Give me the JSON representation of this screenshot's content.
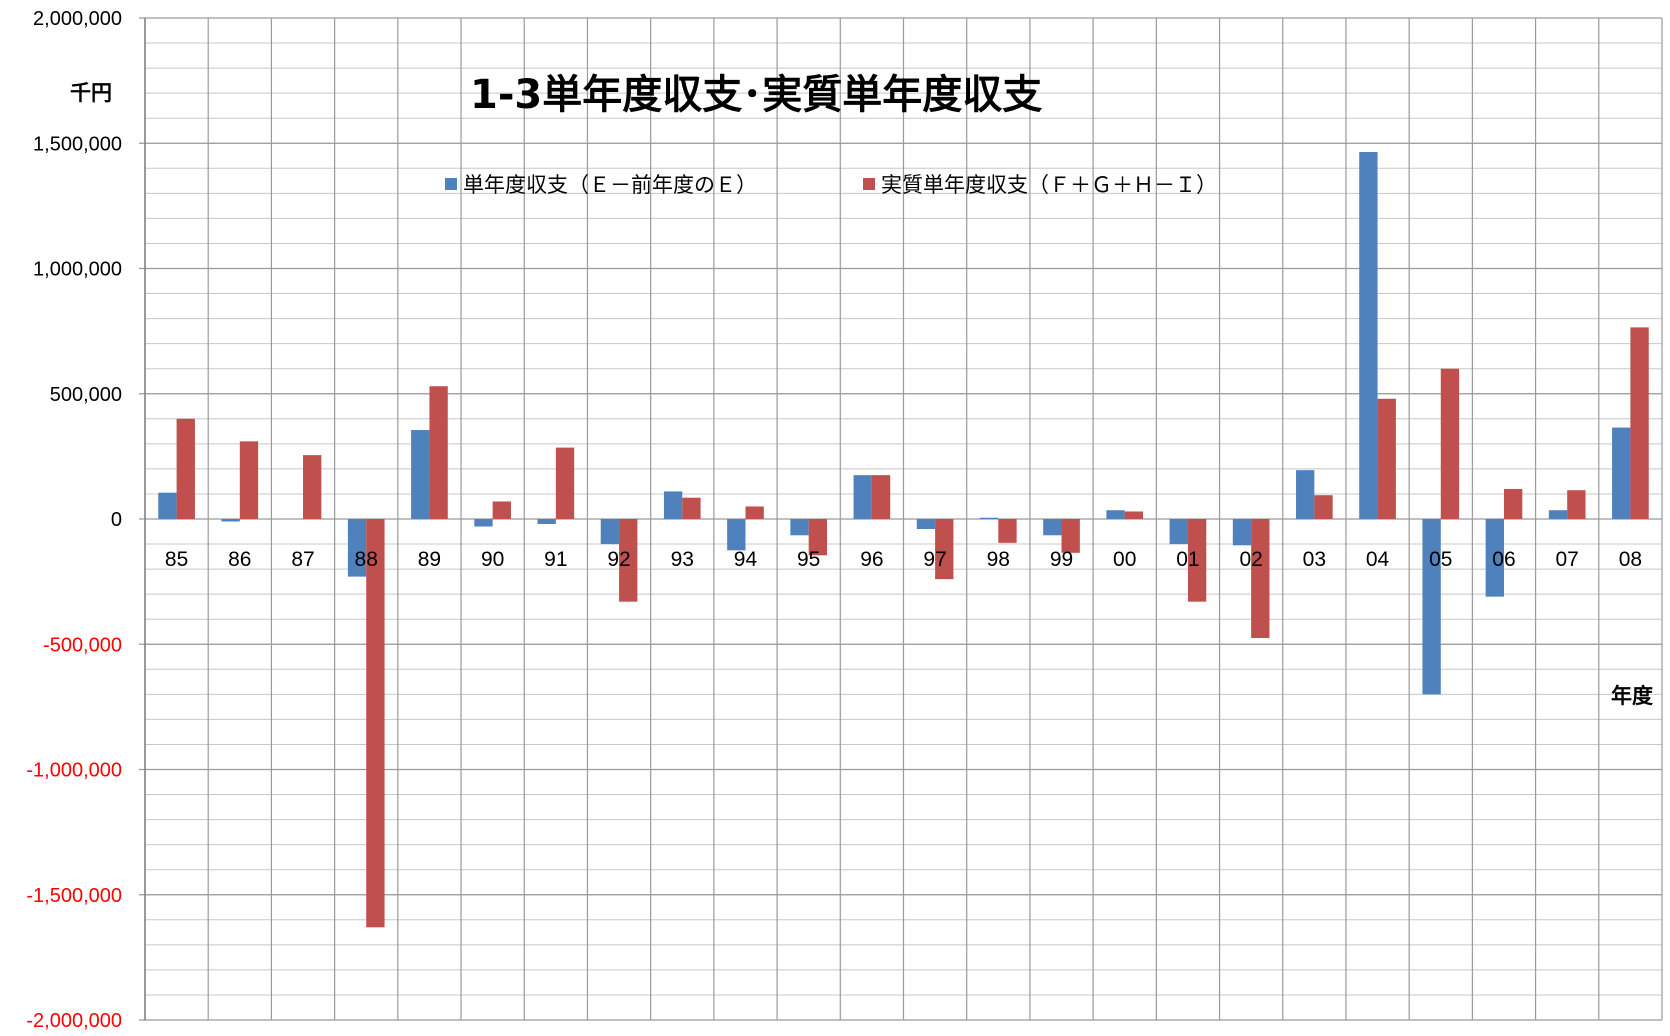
{
  "chart_data": {
    "type": "bar",
    "title": "1-3単年度収支･実質単年度収支",
    "ylabel": "千円",
    "xlabel": "年度",
    "ylim": [
      -2000000,
      2000000
    ],
    "y_ticks": [
      2000000,
      1500000,
      1000000,
      500000,
      0,
      -500000,
      -1000000,
      -1500000,
      -2000000
    ],
    "y_tick_labels": [
      "2,000,000",
      "1,500,000",
      "1,000,000",
      "500,000",
      "0",
      "-500,000",
      "-1,000,000",
      "-1,500,000",
      "-2,000,000"
    ],
    "minor_grid_step": 100000,
    "grid": true,
    "legend_position": "top",
    "negative_tick_color": "#ff0000",
    "categories": [
      "85",
      "86",
      "87",
      "88",
      "89",
      "90",
      "91",
      "92",
      "93",
      "94",
      "95",
      "96",
      "97",
      "98",
      "99",
      "00",
      "01",
      "02",
      "03",
      "04",
      "05",
      "06",
      "07",
      "08"
    ],
    "series": [
      {
        "name": "単年度収支（Ｅ－前年度のＥ）",
        "color": "#4f81bd",
        "values": [
          105000,
          -10000,
          0,
          -230000,
          355000,
          -30000,
          -20000,
          -100000,
          110000,
          -125000,
          -65000,
          175000,
          -40000,
          5000,
          -65000,
          35000,
          -100000,
          -105000,
          195000,
          1465000,
          -700000,
          -310000,
          35000,
          365000
        ]
      },
      {
        "name": "実質単年度収支（Ｆ＋Ｇ＋Ｈ－Ｉ）",
        "color": "#c0504d",
        "values": [
          400000,
          310000,
          255000,
          -1630000,
          530000,
          70000,
          285000,
          -330000,
          85000,
          50000,
          -145000,
          175000,
          -240000,
          -95000,
          -135000,
          30000,
          -330000,
          -475000,
          95000,
          480000,
          600000,
          120000,
          115000,
          765000
        ]
      }
    ]
  }
}
